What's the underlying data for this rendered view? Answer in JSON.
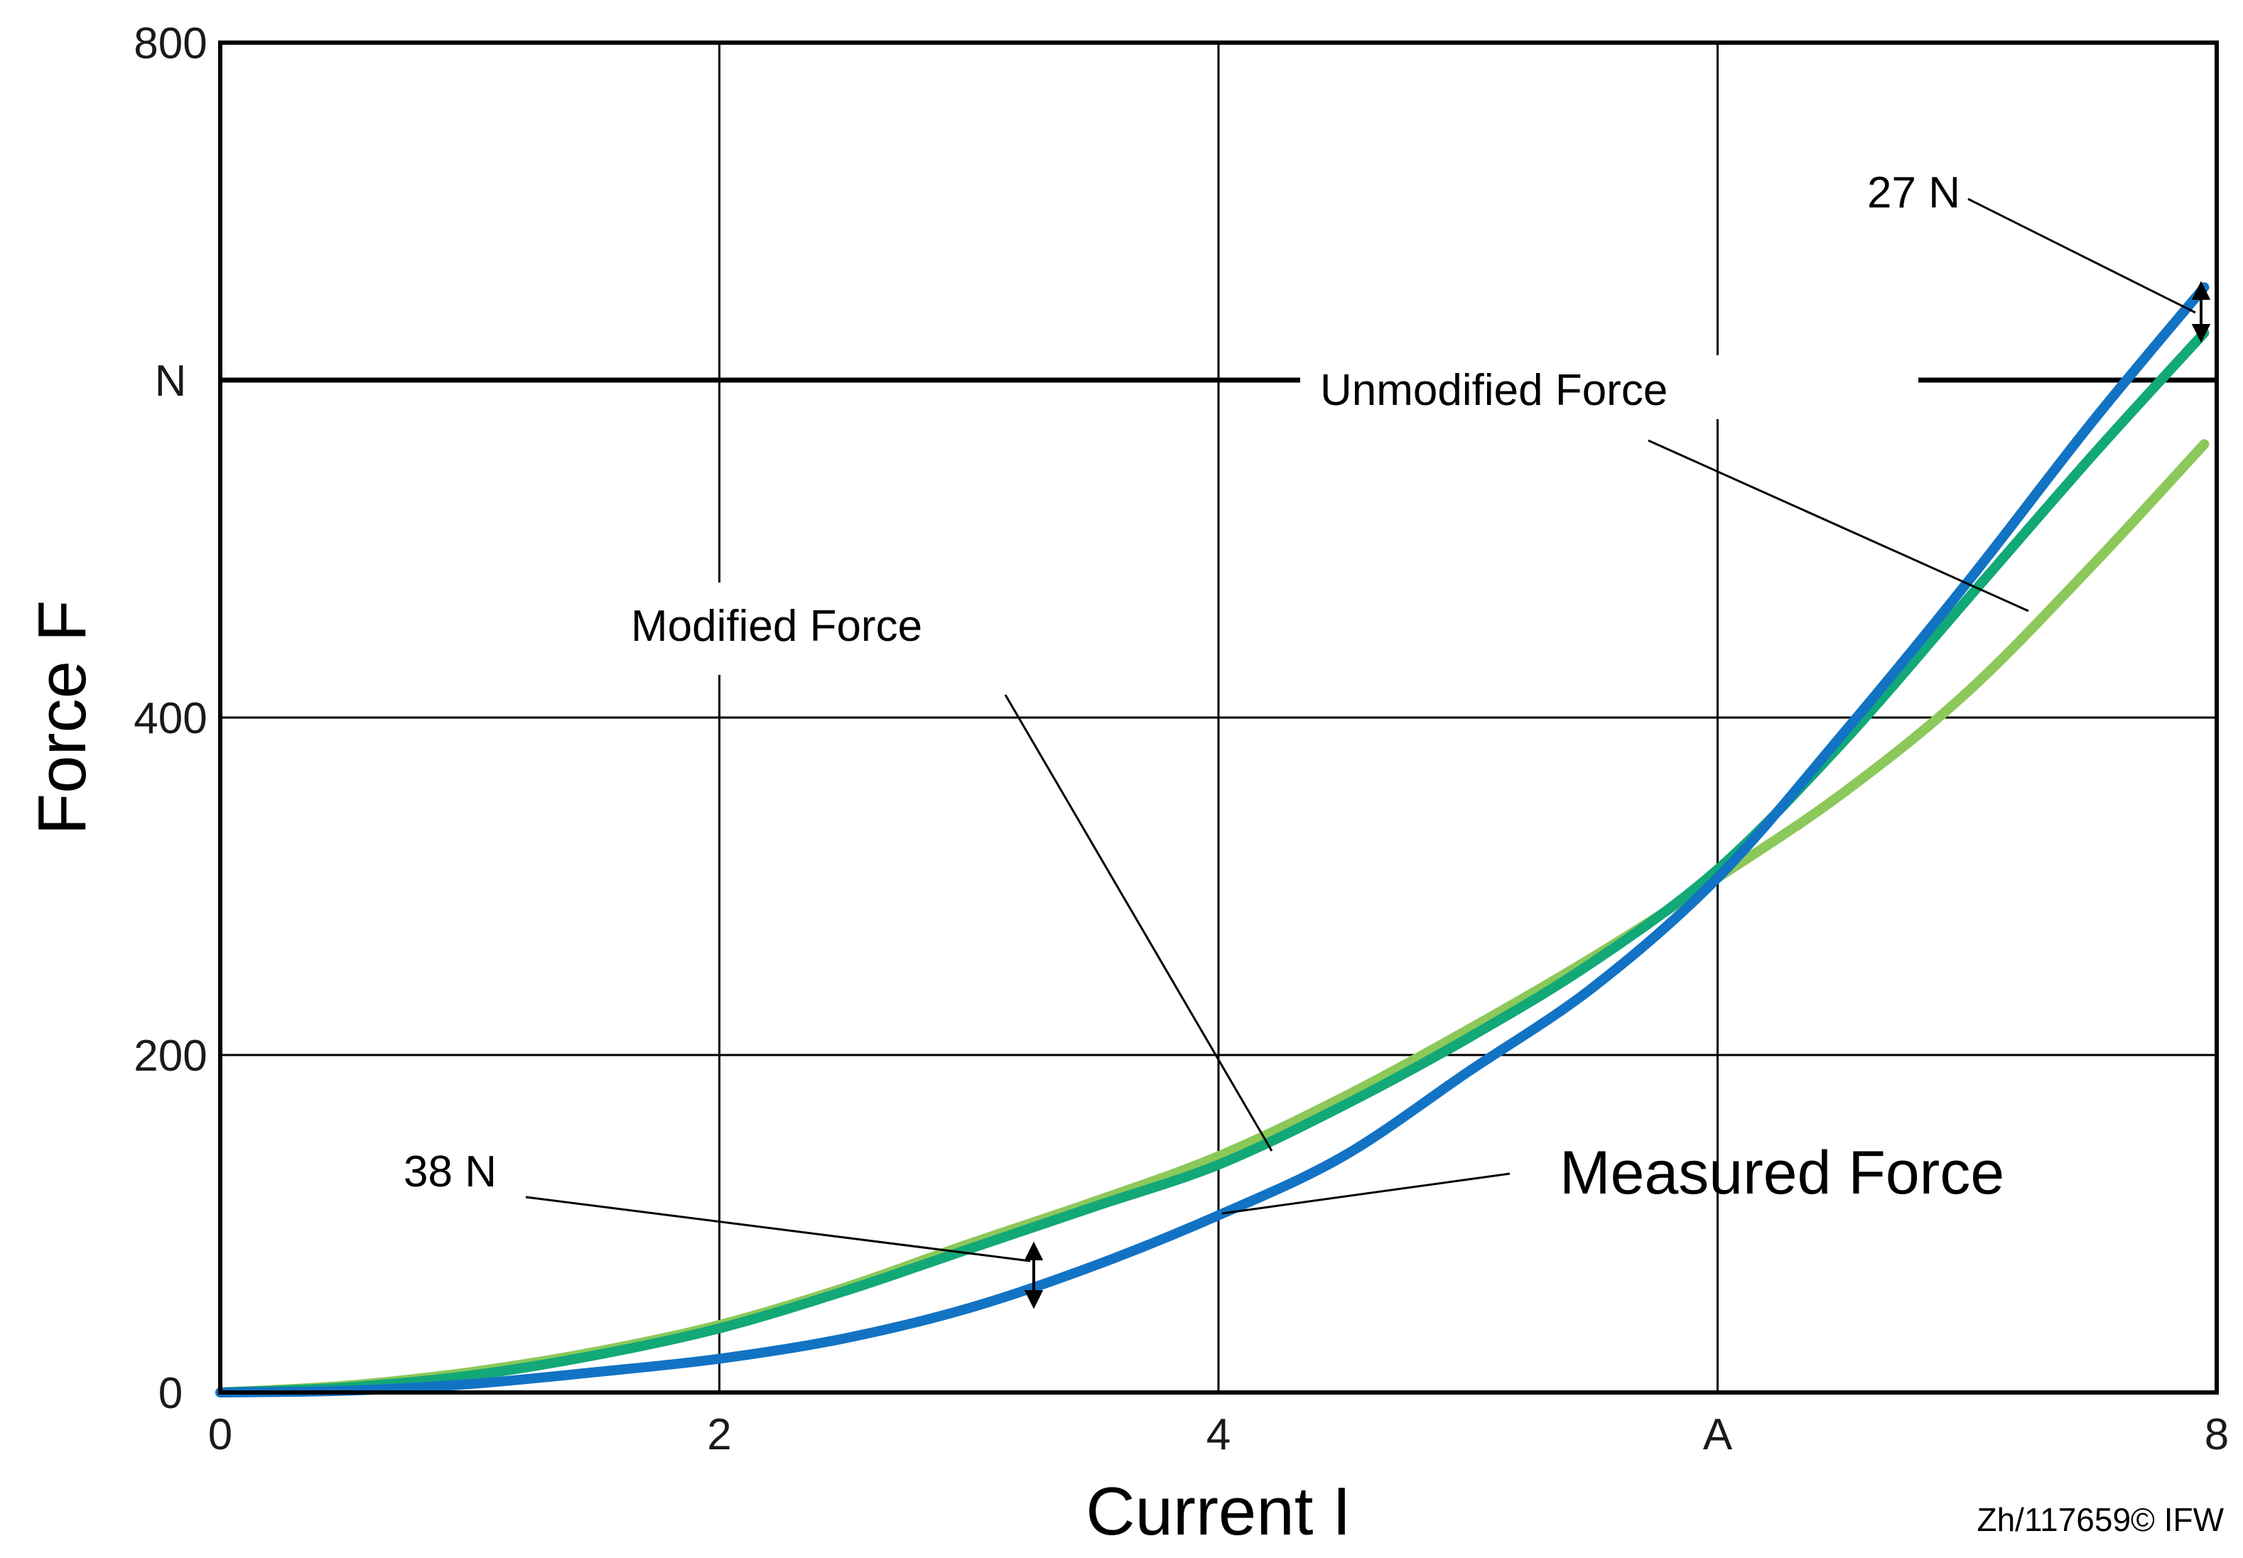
{
  "chart_data": {
    "type": "line",
    "xlabel": "Current I",
    "ylabel": "Force F",
    "xlim": [
      0,
      8
    ],
    "ylim": [
      0,
      800
    ],
    "x_ticks": [
      {
        "value": 0,
        "label": "0"
      },
      {
        "value": 2,
        "label": "2"
      },
      {
        "value": 4,
        "label": "4"
      },
      {
        "value": 6,
        "label": "A"
      },
      {
        "value": 8,
        "label": "8"
      }
    ],
    "y_ticks": [
      {
        "value": 0,
        "label": "0"
      },
      {
        "value": 200,
        "label": "200"
      },
      {
        "value": 400,
        "label": "400"
      },
      {
        "value": 600,
        "label": "N"
      },
      {
        "value": 800,
        "label": "800"
      }
    ],
    "grid": true,
    "series": [
      {
        "name": "Measured Force",
        "color": "#1273c4",
        "x": [
          0,
          0.5,
          1,
          1.5,
          2,
          2.5,
          3,
          3.5,
          4,
          4.5,
          5,
          5.5,
          6,
          6.5,
          7,
          7.5,
          7.95
        ],
        "y": [
          0,
          1,
          5,
          12,
          20,
          32,
          50,
          75,
          105,
          140,
          190,
          240,
          305,
          390,
          480,
          575,
          655
        ]
      },
      {
        "name": "Modified Force",
        "color": "#12a878",
        "x": [
          0,
          0.5,
          1,
          1.5,
          2,
          2.5,
          3,
          3.5,
          4,
          4.5,
          5,
          5.5,
          6,
          6.5,
          7,
          7.5,
          7.95
        ],
        "y": [
          0,
          3,
          10,
          22,
          38,
          60,
          85,
          110,
          135,
          170,
          210,
          255,
          310,
          385,
          470,
          555,
          628
        ]
      },
      {
        "name": "Unmodified Force",
        "color": "#8cc85a",
        "x": [
          0,
          0.5,
          1,
          1.5,
          2,
          2.5,
          3,
          3.5,
          4,
          4.5,
          5,
          5.5,
          6,
          6.5,
          7,
          7.5,
          7.95
        ],
        "y": [
          0,
          4,
          12,
          24,
          40,
          62,
          88,
          113,
          140,
          175,
          215,
          258,
          305,
          355,
          415,
          490,
          562
        ]
      }
    ],
    "annotations": {
      "measured": "Measured Force",
      "modified": "Modified Force",
      "unmodified": "Unmodified Force",
      "diff_low": "38 N",
      "diff_high": "27 N"
    }
  },
  "footer": {
    "copyright": "Zh/117659© IFW"
  }
}
